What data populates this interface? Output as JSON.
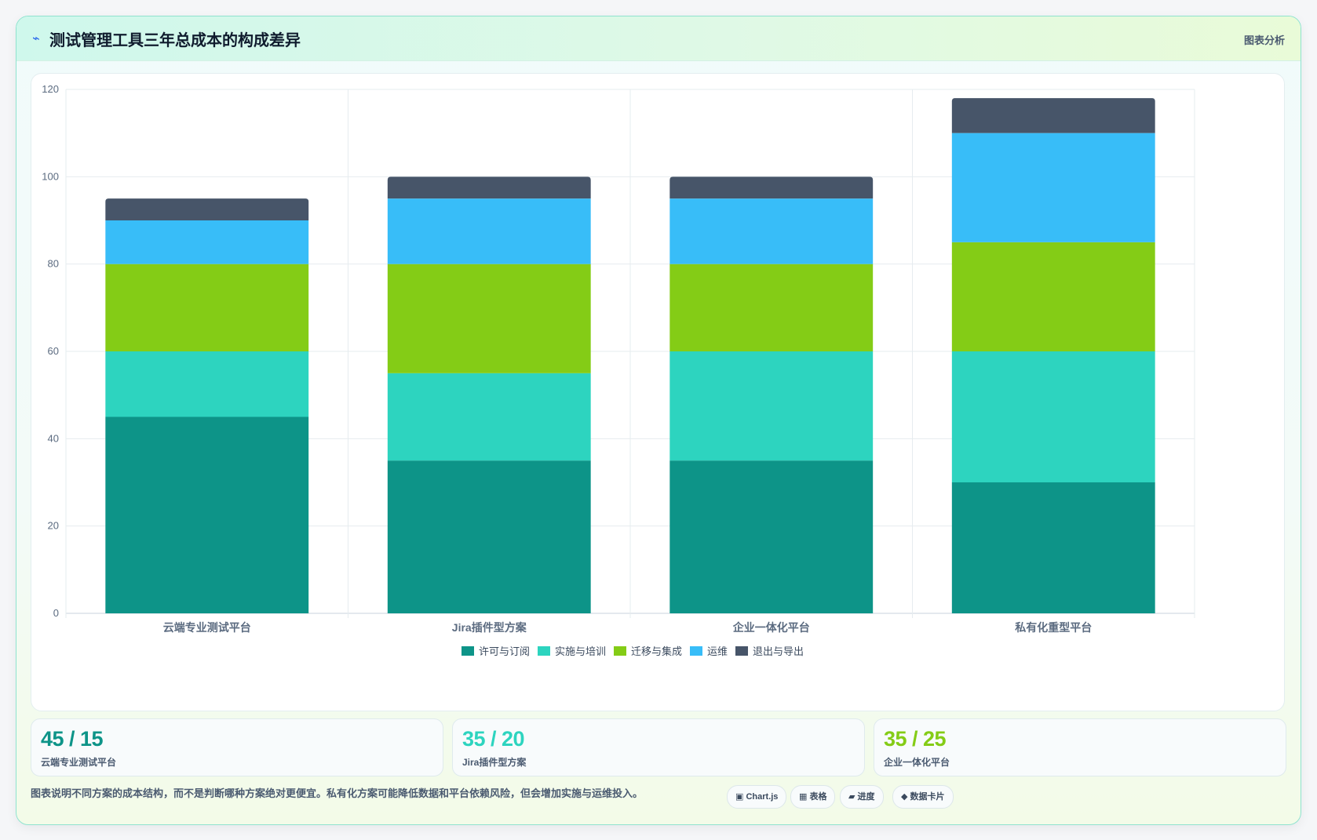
{
  "header": {
    "icon": "lightning-icon",
    "title": "测试管理工具三年总成本的构成差异",
    "tag": "图表分析"
  },
  "chart_data": {
    "type": "bar",
    "stacked": true,
    "categories": [
      "云端专业测试平台",
      "Jira插件型方案",
      "企业一体化平台",
      "私有化重型平台"
    ],
    "series": [
      {
        "name": "许可与订阅",
        "color": "#0d9488",
        "values": [
          45,
          35,
          35,
          30
        ]
      },
      {
        "name": "实施与培训",
        "color": "#2dd4bf",
        "values": [
          15,
          20,
          25,
          30
        ]
      },
      {
        "name": "迁移与集成",
        "color": "#84cc16",
        "values": [
          20,
          25,
          20,
          25
        ]
      },
      {
        "name": "运维",
        "color": "#38bdf8",
        "values": [
          10,
          15,
          15,
          25
        ]
      },
      {
        "name": "退出与导出",
        "color": "#475569",
        "values": [
          5,
          5,
          5,
          8
        ]
      }
    ],
    "ylim": [
      0,
      120
    ],
    "yticks": [
      0,
      20,
      40,
      60,
      80,
      100,
      120
    ],
    "grid": true,
    "legend": "bottom"
  },
  "stats": [
    {
      "value": "45 / 15",
      "label": "云端专业测试平台",
      "color": "#0d9488"
    },
    {
      "value": "35 / 20",
      "label": "Jira插件型方案",
      "color": "#2dd4bf"
    },
    {
      "value": "35 / 25",
      "label": "企业一体化平台",
      "color": "#84cc16"
    }
  ],
  "footer": {
    "note": "图表说明不同方案的成本结构，而不是判断哪种方案绝对更便宜。私有化方案可能降低数据和平台依赖风险，但会增加实施与运维投入。",
    "chips": [
      {
        "icon": "▣",
        "label": "Chart.js"
      },
      {
        "icon": "▦",
        "label": "表格"
      },
      {
        "icon": "▰",
        "label": "进度"
      },
      {
        "icon": "◆",
        "label": "数据卡片"
      }
    ]
  }
}
